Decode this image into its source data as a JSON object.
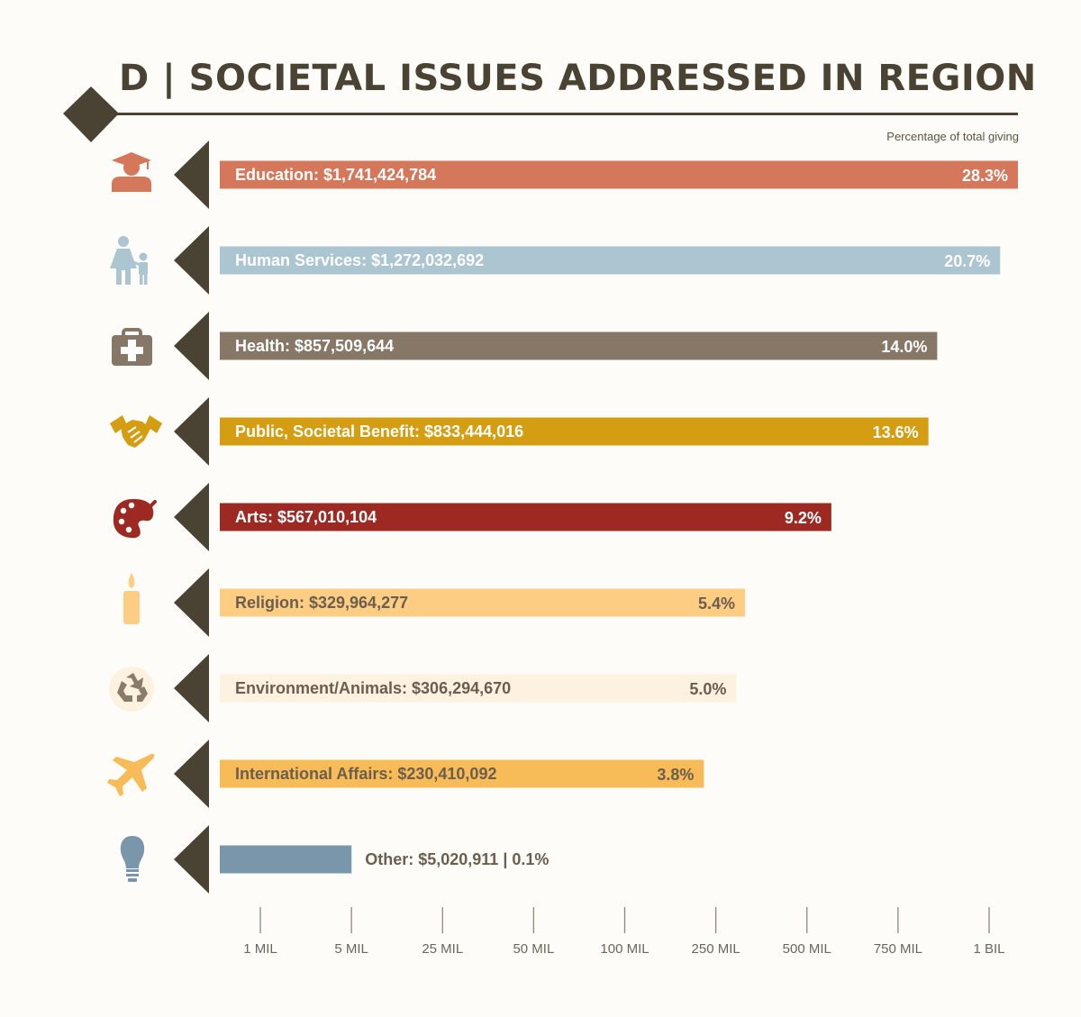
{
  "header": {
    "title": "D | SOCIETAL ISSUES ADDRESSED IN REGION",
    "subtitle": "Percentage of total giving"
  },
  "colors": {
    "dark": "#4a4334",
    "text_dark": "#6b5e4e",
    "text_light": "#ffffff"
  },
  "chart_data": {
    "type": "bar",
    "orientation": "horizontal",
    "scale": "log",
    "title": "D | SOCIETAL ISSUES ADDRESSED IN REGION",
    "subtitle": "Percentage of total giving",
    "xlabel": "",
    "ylabel": "",
    "x_ticks": [
      {
        "label": "1 MIL",
        "value": 1000000
      },
      {
        "label": "5 MIL",
        "value": 5000000
      },
      {
        "label": "25 MIL",
        "value": 25000000
      },
      {
        "label": "50 MIL",
        "value": 50000000
      },
      {
        "label": "100 MIL",
        "value": 100000000
      },
      {
        "label": "250 MIL",
        "value": 250000000
      },
      {
        "label": "500 MIL",
        "value": 500000000
      },
      {
        "label": "750 MIL",
        "value": 750000000
      },
      {
        "label": "1 BIL",
        "value": 1000000000
      }
    ],
    "categories": [
      {
        "name": "Education",
        "label": "Education: $1,741,424,784",
        "value": 1741424784,
        "pct": "28.3%",
        "color": "#d5775a",
        "label_color": "#ffffff",
        "icon": "graduate-icon"
      },
      {
        "name": "Human Services",
        "label": "Human Services: $1,272,032,692",
        "value": 1272032692,
        "pct": "20.7%",
        "color": "#abc5d1",
        "label_color": "#ffffff",
        "icon": "family-icon"
      },
      {
        "name": "Health",
        "label": "Health: $857,509,644",
        "value": 857509644,
        "pct": "14.0%",
        "color": "#877766",
        "label_color": "#ffffff",
        "icon": "first-aid-kit-icon"
      },
      {
        "name": "Public, Societal Benefit",
        "label": "Public, Societal Benefit: $833,444,016",
        "value": 833444016,
        "pct": "13.6%",
        "color": "#d49d12",
        "label_color": "#ffffff",
        "icon": "handshake-icon"
      },
      {
        "name": "Arts",
        "label": "Arts: $567,010,104",
        "value": 567010104,
        "pct": "9.2%",
        "color": "#9c2a22",
        "label_color": "#ffffff",
        "icon": "palette-icon"
      },
      {
        "name": "Religion",
        "label": "Religion: $329,964,277",
        "value": 329964277,
        "pct": "5.4%",
        "color": "#fccd82",
        "label_color": "#6b5e4e",
        "icon": "candle-icon"
      },
      {
        "name": "Environment/Animals",
        "label": "Environment/Animals: $306,294,670",
        "value": 306294670,
        "pct": "5.0%",
        "color": "#fdf1df",
        "label_color": "#6b5e4e",
        "icon": "recycle-icon"
      },
      {
        "name": "International Affairs",
        "label": "International Affairs: $230,410,092",
        "value": 230410092,
        "pct": "3.8%",
        "color": "#f7bb58",
        "label_color": "#6b5e4e",
        "icon": "airplane-icon"
      },
      {
        "name": "Other",
        "label": "Other: $5,020,911 | 0.1%",
        "value": 5020911,
        "pct": "0.1%",
        "color": "#7996ab",
        "label_color": "#6b5e4e",
        "icon": "lightbulb-icon"
      }
    ]
  }
}
